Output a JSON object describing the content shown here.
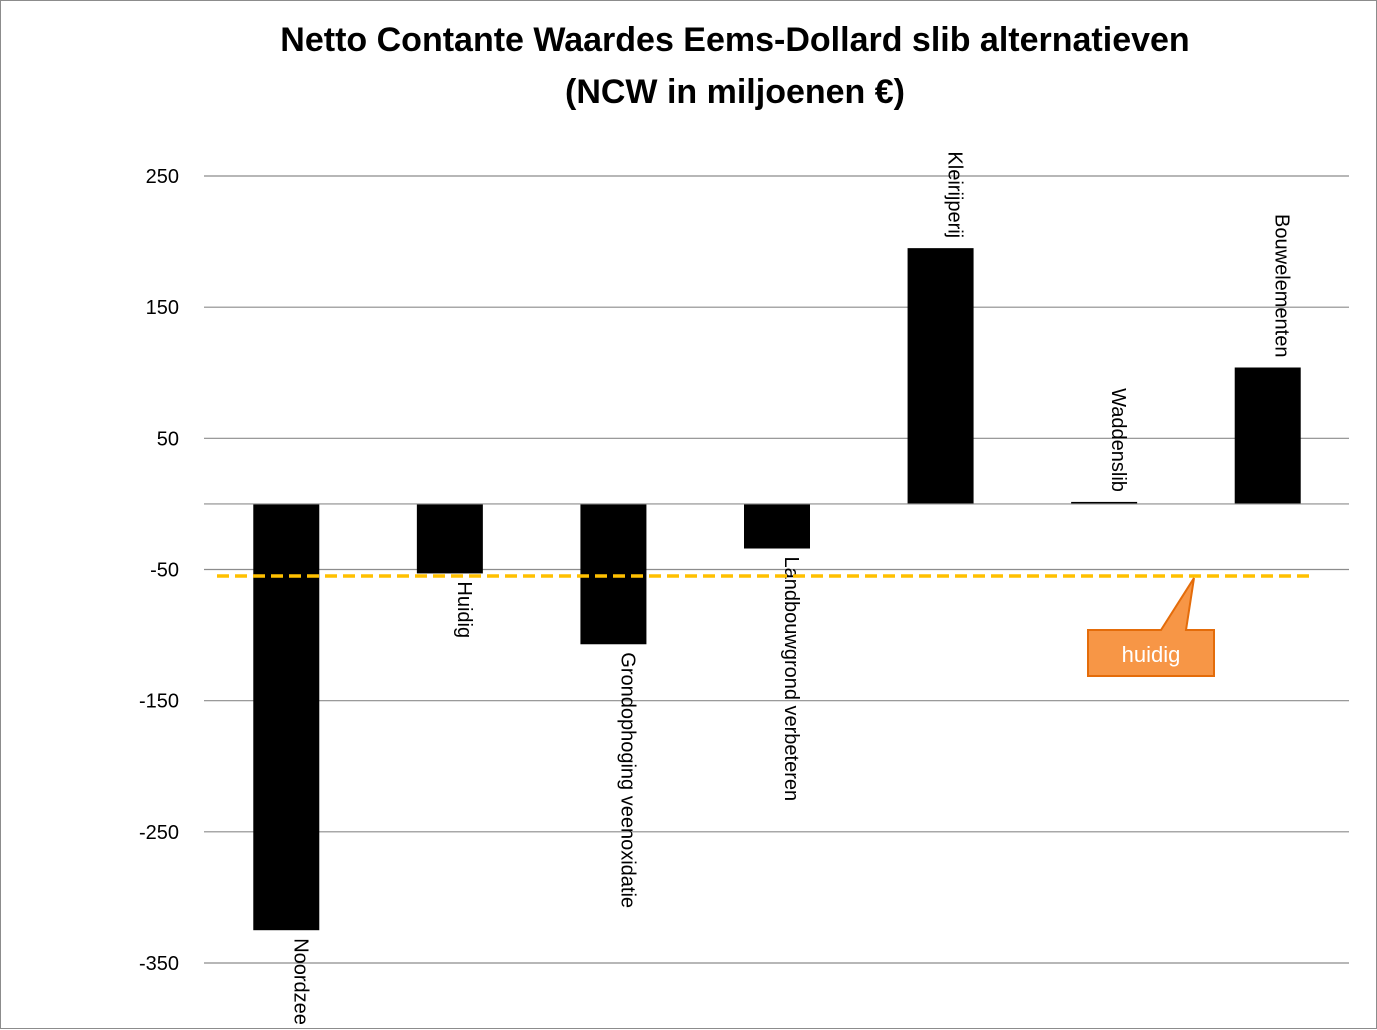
{
  "chart_data": {
    "type": "bar",
    "title": [
      "Netto Contante Waardes Eems-Dollard slib alternatieven",
      "(NCW in miljoenen €)"
    ],
    "categories": [
      "Noordzee",
      "Huidig",
      "Grondophoging veenoxidatie",
      "Landbouwgrond verbeteren",
      "Kleirijperij",
      "Waddenslib",
      "Bouwelementen"
    ],
    "values": [
      -325,
      -53,
      -107,
      -34,
      195,
      1,
      104
    ],
    "yticks": [
      250,
      150,
      50,
      -50,
      -150,
      -250,
      -350
    ],
    "ylim": [
      -350,
      250
    ],
    "grid": true,
    "bar_color": "#000000",
    "reference_line": {
      "value": -55,
      "color": "#ffc000",
      "style": "dashed"
    },
    "callout": {
      "text": "huidig",
      "fill": "#f79646",
      "border": "#e46c0a"
    }
  }
}
